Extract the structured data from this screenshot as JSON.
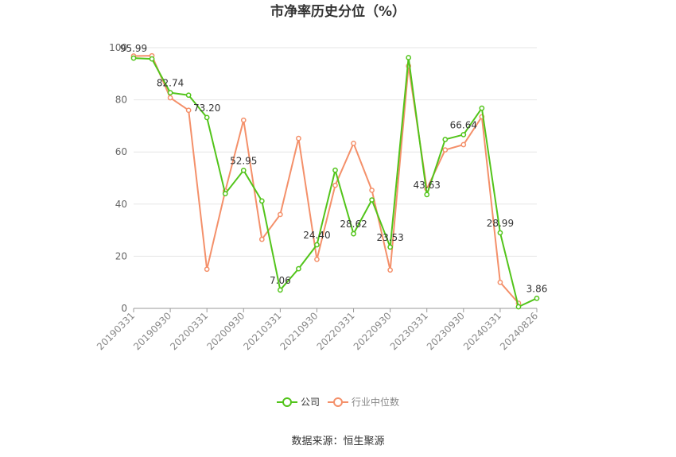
{
  "chart_data": {
    "type": "line",
    "title": "市净率历史分位（%）",
    "source": "数据来源：恒生聚源",
    "ylim": [
      0,
      100
    ],
    "yticks": [
      0,
      20,
      40,
      60,
      80,
      100
    ],
    "x": [
      "20190331",
      "20190630",
      "20190930",
      "20191231",
      "20200331",
      "20200630",
      "20200930",
      "20201231",
      "20210331",
      "20210630",
      "20210930",
      "20211231",
      "20220331",
      "20220630",
      "20220930",
      "20221231",
      "20230331",
      "20230630",
      "20230930",
      "20231231",
      "20240331",
      "20240630",
      "20240826"
    ],
    "xtick_labels": [
      "20190331",
      "20190930",
      "20200331",
      "20200930",
      "20210331",
      "20210930",
      "20220331",
      "20220930",
      "20230331",
      "20230930",
      "20240331",
      "20240826"
    ],
    "grid": true,
    "legend_position": "bottom",
    "series": [
      {
        "name": "公司",
        "color": "#52c41a",
        "values": [
          95.99,
          95.7,
          82.74,
          81.8,
          73.2,
          44.0,
          52.95,
          41.2,
          7.06,
          15.2,
          24.4,
          53.0,
          28.62,
          41.6,
          23.53,
          96.2,
          43.63,
          64.8,
          66.64,
          76.8,
          28.99,
          0.6,
          3.86
        ],
        "labels": {
          "0": "95.99",
          "2": "82.74",
          "4": "73.20",
          "6": "52.95",
          "8": "7.06",
          "10": "24.40",
          "12": "28.62",
          "14": "23.53",
          "16": "43.63",
          "18": "66.64",
          "20": "28.99",
          "22": "3.86"
        }
      },
      {
        "name": "行业中位数",
        "color": "#f4906a",
        "values": [
          96.8,
          96.9,
          80.8,
          76.0,
          15.0,
          45.0,
          72.2,
          26.5,
          36.0,
          65.2,
          18.8,
          47.2,
          63.3,
          45.3,
          14.7,
          93.0,
          45.8,
          60.8,
          62.8,
          73.5,
          10.0,
          2.0,
          null
        ]
      }
    ]
  }
}
